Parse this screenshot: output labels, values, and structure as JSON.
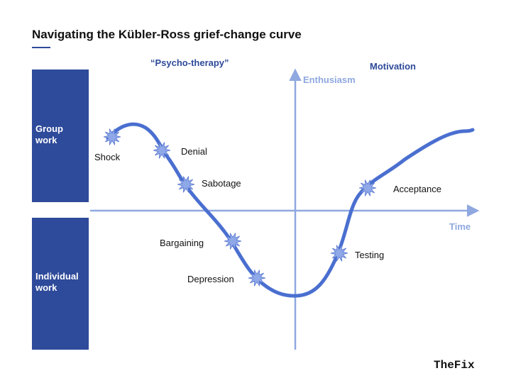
{
  "header": {
    "title": "Navigating the Kübler-Ross grief-change curve"
  },
  "panels": [
    {
      "lines": [
        "Group",
        "work"
      ]
    },
    {
      "lines": [
        "Individual",
        "work"
      ]
    }
  ],
  "headings": {
    "left": "“Psycho-therapy”",
    "right": "Motivation"
  },
  "axes": {
    "y_label": "Enthusiasm",
    "x_label": "Time"
  },
  "stages": [
    "Shock",
    "Denial",
    "Sabotage",
    "Bargaining",
    "Depression",
    "Testing",
    "Acceptance"
  ],
  "brand": "TheFix"
}
